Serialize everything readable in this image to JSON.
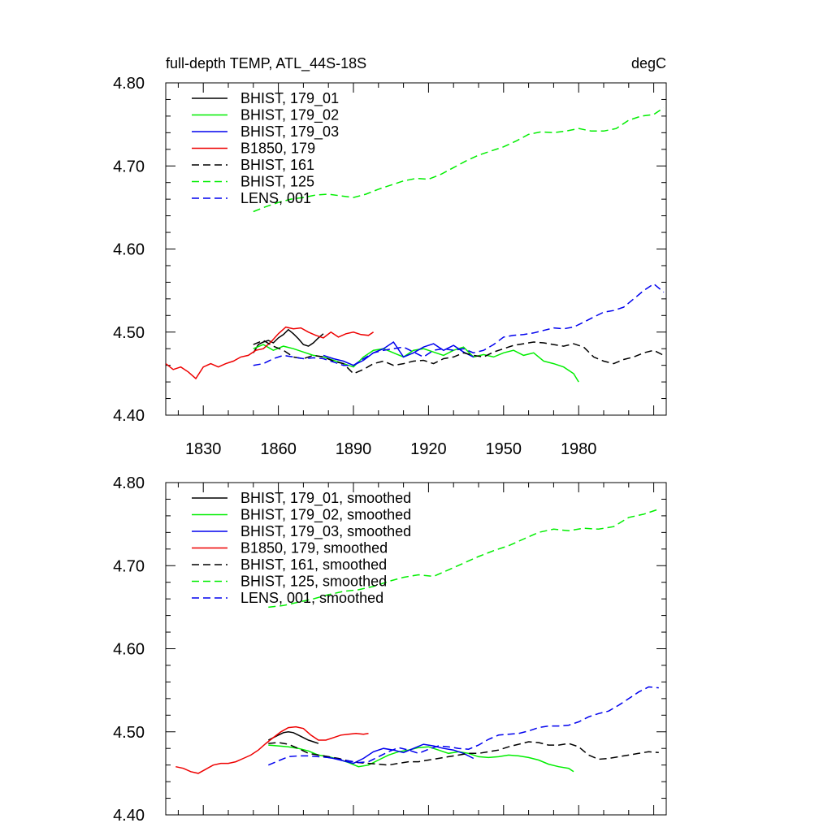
{
  "chart_data": [
    {
      "type": "line",
      "title": "full-depth TEMP, ATL_44S-18S",
      "units": "degC",
      "xlabel": "",
      "ylabel": "",
      "xlim": [
        1815,
        2015
      ],
      "ylim": [
        4.4,
        4.8
      ],
      "xticks": [
        "1830",
        "1860",
        "1890",
        "1920",
        "1950",
        "1980"
      ],
      "yticks": [
        "4.40",
        "4.50",
        "4.60",
        "4.70",
        "4.80"
      ],
      "legend_position": "top-left",
      "series": [
        {
          "name": "BHIST, 179_01",
          "color": "#000000",
          "dash": "solid",
          "x": [
            1850,
            1852,
            1854,
            1856,
            1858,
            1860,
            1862,
            1864,
            1866,
            1868,
            1870,
            1872,
            1874,
            1876,
            1878
          ],
          "y": [
            4.475,
            4.485,
            4.488,
            4.49,
            4.487,
            4.493,
            4.497,
            4.503,
            4.498,
            4.492,
            4.485,
            4.483,
            4.487,
            4.493,
            4.498
          ]
        },
        {
          "name": "BHIST, 179_02",
          "color": "#00ee00",
          "dash": "solid",
          "x": [
            1850,
            1854,
            1858,
            1862,
            1866,
            1870,
            1874,
            1878,
            1882,
            1886,
            1890,
            1894,
            1898,
            1902,
            1906,
            1910,
            1914,
            1918,
            1922,
            1926,
            1930,
            1934,
            1938,
            1942,
            1946,
            1950,
            1954,
            1958,
            1962,
            1966,
            1970,
            1974,
            1978,
            1980
          ],
          "y": [
            4.48,
            4.485,
            4.478,
            4.483,
            4.48,
            4.476,
            4.472,
            4.47,
            4.466,
            4.462,
            4.458,
            4.47,
            4.478,
            4.48,
            4.475,
            4.47,
            4.478,
            4.48,
            4.476,
            4.472,
            4.478,
            4.482,
            4.47,
            4.473,
            4.47,
            4.475,
            4.478,
            4.472,
            4.475,
            4.465,
            4.462,
            4.458,
            4.45,
            4.44
          ]
        },
        {
          "name": "BHIST, 179_03",
          "color": "#0000ee",
          "dash": "solid",
          "x": [
            1878,
            1882,
            1886,
            1890,
            1894,
            1898,
            1902,
            1906,
            1910,
            1914,
            1918,
            1922,
            1926,
            1930,
            1934,
            1938
          ],
          "y": [
            4.472,
            4.468,
            4.465,
            4.46,
            4.466,
            4.475,
            4.48,
            4.488,
            4.47,
            4.475,
            4.482,
            4.486,
            4.478,
            4.484,
            4.476,
            4.47
          ]
        },
        {
          "name": "B1850, 179",
          "color": "#ee0000",
          "dash": "solid",
          "x": [
            1815,
            1818,
            1821,
            1824,
            1827,
            1830,
            1833,
            1836,
            1839,
            1842,
            1845,
            1848,
            1851,
            1854,
            1857,
            1860,
            1863,
            1866,
            1869,
            1872,
            1875,
            1878,
            1881,
            1884,
            1887,
            1890,
            1893,
            1896,
            1898
          ],
          "y": [
            4.462,
            4.455,
            4.458,
            4.452,
            4.444,
            4.458,
            4.462,
            4.458,
            4.462,
            4.465,
            4.47,
            4.472,
            4.478,
            4.48,
            4.488,
            4.498,
            4.506,
            4.504,
            4.505,
            4.5,
            4.496,
            4.493,
            4.5,
            4.494,
            4.498,
            4.5,
            4.497,
            4.496,
            4.5
          ]
        },
        {
          "name": "BHIST, 161",
          "color": "#000000",
          "dash": "dashed",
          "x": [
            1850,
            1854,
            1858,
            1862,
            1866,
            1870,
            1874,
            1878,
            1882,
            1886,
            1890,
            1894,
            1898,
            1902,
            1906,
            1910,
            1914,
            1918,
            1922,
            1926,
            1930,
            1934,
            1938,
            1942,
            1946,
            1950,
            1954,
            1958,
            1962,
            1966,
            1970,
            1974,
            1978,
            1982,
            1986,
            1990,
            1994,
            1998,
            2002,
            2006,
            2010,
            2014
          ],
          "y": [
            4.485,
            4.49,
            4.483,
            4.478,
            4.47,
            4.468,
            4.472,
            4.47,
            4.465,
            4.462,
            4.45,
            4.455,
            4.462,
            4.465,
            4.46,
            4.462,
            4.465,
            4.466,
            4.462,
            4.468,
            4.47,
            4.475,
            4.472,
            4.47,
            4.476,
            4.48,
            4.484,
            4.486,
            4.488,
            4.487,
            4.485,
            4.483,
            4.486,
            4.482,
            4.47,
            4.465,
            4.462,
            4.467,
            4.47,
            4.475,
            4.478,
            4.472
          ]
        },
        {
          "name": "BHIST, 125",
          "color": "#00ee00",
          "dash": "dashed",
          "x": [
            1850,
            1855,
            1860,
            1865,
            1870,
            1875,
            1880,
            1885,
            1890,
            1895,
            1900,
            1905,
            1910,
            1915,
            1920,
            1925,
            1930,
            1935,
            1940,
            1945,
            1950,
            1955,
            1960,
            1965,
            1970,
            1975,
            1980,
            1985,
            1990,
            1995,
            2000,
            2005,
            2010,
            2014
          ],
          "y": [
            4.645,
            4.651,
            4.656,
            4.66,
            4.662,
            4.665,
            4.666,
            4.664,
            4.662,
            4.666,
            4.672,
            4.677,
            4.682,
            4.685,
            4.684,
            4.69,
            4.698,
            4.706,
            4.713,
            4.718,
            4.723,
            4.73,
            4.738,
            4.741,
            4.74,
            4.742,
            4.745,
            4.742,
            4.742,
            4.745,
            4.755,
            4.76,
            4.762,
            4.77
          ]
        },
        {
          "name": "LENS, 001",
          "color": "#0000ee",
          "dash": "dashed",
          "x": [
            1850,
            1854,
            1858,
            1862,
            1866,
            1870,
            1874,
            1878,
            1882,
            1886,
            1890,
            1894,
            1898,
            1902,
            1906,
            1910,
            1914,
            1918,
            1922,
            1926,
            1930,
            1934,
            1938,
            1942,
            1946,
            1950,
            1954,
            1958,
            1962,
            1966,
            1970,
            1974,
            1978,
            1982,
            1986,
            1990,
            1994,
            1998,
            2002,
            2006,
            2010,
            2014
          ],
          "y": [
            4.46,
            4.462,
            4.468,
            4.472,
            4.47,
            4.468,
            4.469,
            4.468,
            4.464,
            4.46,
            4.46,
            4.468,
            4.475,
            4.478,
            4.48,
            4.482,
            4.476,
            4.47,
            4.478,
            4.48,
            4.478,
            4.48,
            4.475,
            4.478,
            4.485,
            4.494,
            4.496,
            4.497,
            4.499,
            4.502,
            4.505,
            4.504,
            4.506,
            4.512,
            4.518,
            4.524,
            4.526,
            4.53,
            4.54,
            4.55,
            4.558,
            4.548
          ]
        }
      ]
    },
    {
      "type": "line",
      "title": "",
      "xlabel": "",
      "ylabel": "",
      "xlim": [
        1815,
        2015
      ],
      "ylim": [
        4.4,
        4.8
      ],
      "xticks": [],
      "yticks": [
        "4.40",
        "4.50",
        "4.60",
        "4.70",
        "4.80"
      ],
      "legend_position": "top-left",
      "series": [
        {
          "name": "BHIST, 179_01, smoothed",
          "color": "#000000",
          "dash": "solid",
          "x": [
            1856,
            1858,
            1860,
            1862,
            1864,
            1866,
            1868,
            1870,
            1872,
            1874,
            1876
          ],
          "y": [
            4.49,
            4.493,
            4.496,
            4.499,
            4.5,
            4.499,
            4.496,
            4.493,
            4.49,
            4.488,
            4.486
          ]
        },
        {
          "name": "BHIST, 179_02, smoothed",
          "color": "#00ee00",
          "dash": "solid",
          "x": [
            1856,
            1860,
            1864,
            1868,
            1872,
            1876,
            1880,
            1884,
            1888,
            1892,
            1896,
            1900,
            1904,
            1908,
            1912,
            1916,
            1920,
            1924,
            1928,
            1932,
            1936,
            1940,
            1944,
            1948,
            1952,
            1956,
            1960,
            1964,
            1968,
            1972,
            1976,
            1978
          ],
          "y": [
            4.484,
            4.483,
            4.482,
            4.48,
            4.477,
            4.472,
            4.47,
            4.467,
            4.463,
            4.458,
            4.46,
            4.466,
            4.472,
            4.476,
            4.478,
            4.481,
            4.482,
            4.478,
            4.474,
            4.476,
            4.474,
            4.47,
            4.469,
            4.47,
            4.472,
            4.471,
            4.469,
            4.466,
            4.461,
            4.458,
            4.456,
            4.452
          ]
        },
        {
          "name": "BHIST, 179_03, smoothed",
          "color": "#0000ee",
          "dash": "solid",
          "x": [
            1878,
            1882,
            1886,
            1890,
            1894,
            1898,
            1902,
            1906,
            1910,
            1914,
            1918,
            1922,
            1926,
            1930,
            1934,
            1938
          ],
          "y": [
            4.47,
            4.468,
            4.465,
            4.462,
            4.468,
            4.476,
            4.48,
            4.478,
            4.475,
            4.48,
            4.485,
            4.483,
            4.48,
            4.478,
            4.474,
            4.468
          ]
        },
        {
          "name": "B1850, 179, smoothed",
          "color": "#ee0000",
          "dash": "solid",
          "x": [
            1819,
            1822,
            1825,
            1828,
            1831,
            1834,
            1837,
            1840,
            1843,
            1846,
            1849,
            1852,
            1855,
            1858,
            1861,
            1864,
            1867,
            1870,
            1873,
            1876,
            1879,
            1882,
            1885,
            1888,
            1891,
            1894,
            1896
          ],
          "y": [
            4.458,
            4.456,
            4.452,
            4.45,
            4.455,
            4.46,
            4.462,
            4.462,
            4.464,
            4.468,
            4.472,
            4.478,
            4.486,
            4.493,
            4.5,
            4.505,
            4.506,
            4.504,
            4.496,
            4.49,
            4.49,
            4.493,
            4.496,
            4.497,
            4.498,
            4.497,
            4.498
          ]
        },
        {
          "name": "BHIST, 161, smoothed",
          "color": "#000000",
          "dash": "dashed",
          "x": [
            1856,
            1860,
            1864,
            1868,
            1872,
            1876,
            1880,
            1884,
            1888,
            1892,
            1896,
            1900,
            1904,
            1908,
            1912,
            1916,
            1920,
            1924,
            1928,
            1932,
            1936,
            1940,
            1944,
            1948,
            1952,
            1956,
            1960,
            1964,
            1968,
            1972,
            1976,
            1980,
            1984,
            1988,
            1992,
            1996,
            2000,
            2004,
            2008,
            2012
          ],
          "y": [
            4.486,
            4.487,
            4.485,
            4.48,
            4.474,
            4.472,
            4.47,
            4.468,
            4.465,
            4.463,
            4.462,
            4.461,
            4.46,
            4.462,
            4.464,
            4.464,
            4.466,
            4.468,
            4.47,
            4.472,
            4.474,
            4.474,
            4.476,
            4.478,
            4.482,
            4.485,
            4.488,
            4.487,
            4.484,
            4.484,
            4.486,
            4.482,
            4.472,
            4.467,
            4.468,
            4.47,
            4.472,
            4.474,
            4.476,
            4.475
          ]
        },
        {
          "name": "BHIST, 125, smoothed",
          "color": "#00ee00",
          "dash": "dashed",
          "x": [
            1856,
            1862,
            1868,
            1874,
            1880,
            1886,
            1892,
            1898,
            1904,
            1910,
            1916,
            1922,
            1928,
            1934,
            1940,
            1946,
            1952,
            1958,
            1964,
            1970,
            1976,
            1982,
            1988,
            1994,
            2000,
            2006,
            2012
          ],
          "y": [
            4.65,
            4.652,
            4.656,
            4.66,
            4.665,
            4.669,
            4.671,
            4.675,
            4.681,
            4.686,
            4.689,
            4.687,
            4.695,
            4.703,
            4.711,
            4.718,
            4.724,
            4.732,
            4.74,
            4.744,
            4.742,
            4.745,
            4.744,
            4.747,
            4.758,
            4.762,
            4.768
          ]
        },
        {
          "name": "LENS, 001, smoothed",
          "color": "#0000ee",
          "dash": "dashed",
          "x": [
            1856,
            1860,
            1864,
            1868,
            1872,
            1876,
            1880,
            1884,
            1888,
            1892,
            1896,
            1900,
            1904,
            1908,
            1912,
            1916,
            1920,
            1924,
            1928,
            1932,
            1936,
            1940,
            1944,
            1948,
            1952,
            1956,
            1960,
            1964,
            1968,
            1972,
            1976,
            1980,
            1984,
            1988,
            1992,
            1996,
            2000,
            2004,
            2008,
            2012
          ],
          "y": [
            4.46,
            4.465,
            4.47,
            4.471,
            4.471,
            4.47,
            4.469,
            4.467,
            4.465,
            4.463,
            4.464,
            4.47,
            4.476,
            4.481,
            4.478,
            4.474,
            4.479,
            4.483,
            4.482,
            4.48,
            4.479,
            4.484,
            4.491,
            4.496,
            4.497,
            4.498,
            4.501,
            4.505,
            4.507,
            4.507,
            4.508,
            4.512,
            4.518,
            4.522,
            4.525,
            4.532,
            4.54,
            4.548,
            4.554,
            4.553
          ]
        }
      ]
    }
  ]
}
